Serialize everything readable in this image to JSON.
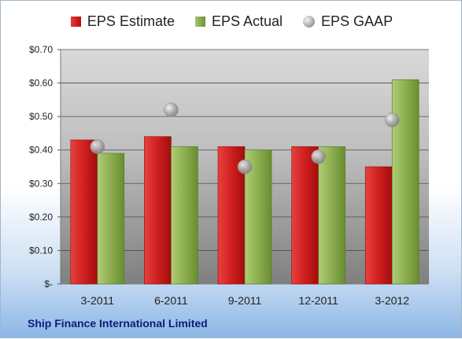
{
  "chart_data": {
    "type": "bar",
    "categories": [
      "3-2011",
      "6-2011",
      "9-2011",
      "12-2011",
      "3-2012"
    ],
    "series": [
      {
        "name": "EPS Estimate",
        "values": [
          0.43,
          0.44,
          0.41,
          0.41,
          0.35
        ],
        "color": "#c81e1e"
      },
      {
        "name": "EPS Actual",
        "values": [
          0.39,
          0.41,
          0.4,
          0.41,
          0.61
        ],
        "color": "#8cae4f"
      },
      {
        "name": "EPS GAAP",
        "values": [
          0.41,
          0.52,
          0.35,
          0.38,
          0.49
        ],
        "color": "#a0a0a0",
        "style": "marker"
      }
    ],
    "yticks": [
      "$-",
      "$0.10",
      "$0.20",
      "$0.30",
      "$0.40",
      "$0.50",
      "$0.60",
      "$0.70"
    ],
    "ylim": [
      0,
      0.7
    ],
    "grid": true,
    "legend": "top-center"
  },
  "footer": {
    "company": "Ship Finance International Limited"
  }
}
